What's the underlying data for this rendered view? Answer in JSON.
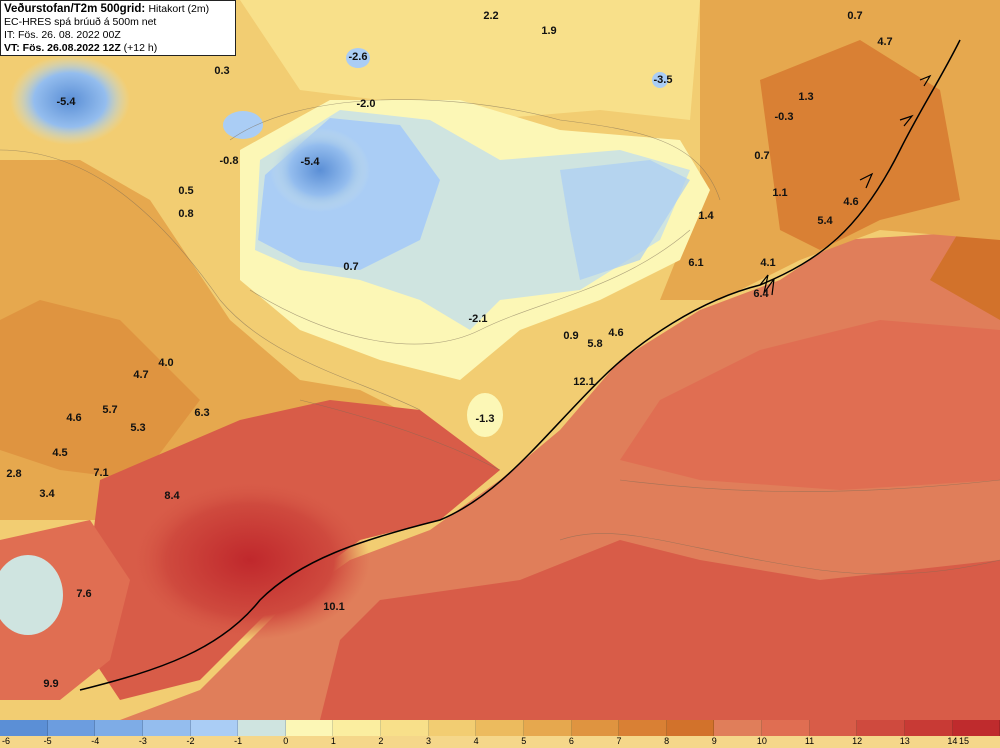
{
  "header": {
    "title_bold": "Veðurstofan/T2m 500grid:",
    "title_rest": "Hitakort (2m)",
    "model": "EC-HRES spá brúuð á 500m net",
    "init_time": "IT: Fös. 26. 08. 2022 00Z",
    "valid_label": "VT: Fös. 26.08.2022 12Z",
    "valid_offset": "(+12 h)"
  },
  "labels": [
    "2.2",
    "1.9",
    "0.7",
    "4.7",
    "-2.6",
    "0.3",
    "-5.4",
    "-3.5",
    "-2.0",
    "1.3",
    "-0.3",
    "-0.8",
    "-5.4",
    "0.7",
    "0.5",
    "1.1",
    "4.6",
    "0.8",
    "1.4",
    "5.4",
    "0.7",
    "6.1",
    "4.1",
    "6.4",
    "-2.1",
    "0.9",
    "5.8",
    "4.6",
    "4.0",
    "4.7",
    "12.1",
    "5.7",
    "6.3",
    "4.6",
    "5.3",
    "-1.3",
    "4.5",
    "7.1",
    "2.8",
    "3.4",
    "8.4",
    "7.6",
    "10.1",
    "9.9"
  ],
  "colorbar": {
    "ticks": [
      "-6",
      "-5",
      "-4",
      "-3",
      "-2",
      "-1",
      "0",
      "1",
      "2",
      "3",
      "4",
      "5",
      "6",
      "7",
      "8",
      "9",
      "10",
      "11",
      "12",
      "13",
      "14",
      "15"
    ],
    "colors": [
      "#5b8fd6",
      "#6c9ddf",
      "#7eace6",
      "#94bdee",
      "#aacdf5",
      "#cfe4e0",
      "#fcf7b6",
      "#fbeea0",
      "#f8e08a",
      "#f2cd72",
      "#ecbb5e",
      "#e6a84e",
      "#df9440",
      "#d98034",
      "#d2722b",
      "#e07e5a",
      "#e06e52",
      "#d85c48",
      "#cf4a3e",
      "#c83a35",
      "#bf2b2d"
    ]
  }
}
